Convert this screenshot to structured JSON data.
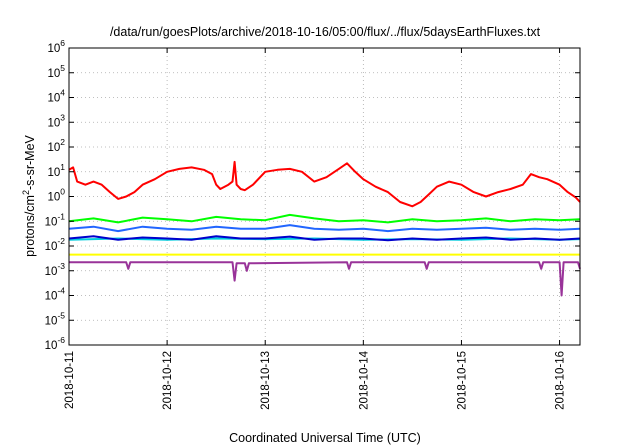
{
  "chart_data": {
    "type": "line",
    "title": "/data/run/goesPlots/archive/2018-10-16/05:00/flux/../flux/5daysEarthFluxes.txt",
    "xlabel": "Coordinated Universal Time (UTC)",
    "ylabel": {
      "pre": "protons/cm",
      "sup": "2",
      "post": "-s-sr-MeV"
    },
    "yscale": "log",
    "ylim": [
      1e-06,
      1000000.0
    ],
    "yticks": [
      {
        "base": "10",
        "exp": "-6",
        "value": 1e-06
      },
      {
        "base": "10",
        "exp": "-5",
        "value": 1e-05
      },
      {
        "base": "10",
        "exp": "-4",
        "value": 0.0001
      },
      {
        "base": "10",
        "exp": "-3",
        "value": 0.001
      },
      {
        "base": "10",
        "exp": "-2",
        "value": 0.01
      },
      {
        "base": "10",
        "exp": "-1",
        "value": 0.1
      },
      {
        "base": "10",
        "exp": "0",
        "value": 1
      },
      {
        "base": "10",
        "exp": "1",
        "value": 10.0
      },
      {
        "base": "10",
        "exp": "2",
        "value": 100.0
      },
      {
        "base": "10",
        "exp": "3",
        "value": 1000.0
      },
      {
        "base": "10",
        "exp": "4",
        "value": 10000.0
      },
      {
        "base": "10",
        "exp": "5",
        "value": 100000.0
      },
      {
        "base": "10",
        "exp": "6",
        "value": 1000000.0
      }
    ],
    "xlim": [
      "2018-10-11 00:00",
      "2018-10-16 05:00"
    ],
    "xticks": [
      "2018-10-11",
      "2018-10-12",
      "2018-10-13",
      "2018-10-14",
      "2018-10-15",
      "2018-10-16"
    ],
    "grid": true,
    "series": [
      {
        "color": "#ff0000",
        "points": [
          [
            "2018-10-11 00:00",
            12
          ],
          [
            "2018-10-11 01:00",
            15
          ],
          [
            "2018-10-11 02:00",
            4
          ],
          [
            "2018-10-11 04:00",
            3
          ],
          [
            "2018-10-11 06:00",
            4
          ],
          [
            "2018-10-11 08:00",
            3
          ],
          [
            "2018-10-11 10:00",
            1.5
          ],
          [
            "2018-10-11 12:00",
            0.8
          ],
          [
            "2018-10-11 14:00",
            1
          ],
          [
            "2018-10-11 16:00",
            1.5
          ],
          [
            "2018-10-11 18:00",
            3
          ],
          [
            "2018-10-11 21:00",
            5
          ],
          [
            "2018-10-12 00:00",
            10
          ],
          [
            "2018-10-12 03:00",
            13
          ],
          [
            "2018-10-12 06:00",
            15
          ],
          [
            "2018-10-12 09:00",
            12
          ],
          [
            "2018-10-12 11:00",
            8
          ],
          [
            "2018-10-12 12:00",
            3
          ],
          [
            "2018-10-12 13:00",
            2
          ],
          [
            "2018-10-12 15:00",
            3
          ],
          [
            "2018-10-12 16:00",
            4
          ],
          [
            "2018-10-12 16:30",
            25
          ],
          [
            "2018-10-12 17:00",
            3
          ],
          [
            "2018-10-12 18:00",
            2
          ],
          [
            "2018-10-12 19:00",
            1.8
          ],
          [
            "2018-10-12 21:00",
            3
          ],
          [
            "2018-10-13 00:00",
            10
          ],
          [
            "2018-10-13 03:00",
            12
          ],
          [
            "2018-10-13 06:00",
            13
          ],
          [
            "2018-10-13 09:00",
            10
          ],
          [
            "2018-10-13 12:00",
            4
          ],
          [
            "2018-10-13 15:00",
            6
          ],
          [
            "2018-10-13 18:00",
            13
          ],
          [
            "2018-10-13 20:00",
            22
          ],
          [
            "2018-10-13 22:00",
            10
          ],
          [
            "2018-10-14 00:00",
            5
          ],
          [
            "2018-10-14 03:00",
            2.5
          ],
          [
            "2018-10-14 06:00",
            1.5
          ],
          [
            "2018-10-14 09:00",
            0.6
          ],
          [
            "2018-10-14 12:00",
            0.4
          ],
          [
            "2018-10-14 14:00",
            0.6
          ],
          [
            "2018-10-14 16:00",
            1.2
          ],
          [
            "2018-10-14 18:00",
            2.5
          ],
          [
            "2018-10-14 21:00",
            4
          ],
          [
            "2018-10-15 00:00",
            3
          ],
          [
            "2018-10-15 03:00",
            1.5
          ],
          [
            "2018-10-15 06:00",
            1
          ],
          [
            "2018-10-15 09:00",
            1.5
          ],
          [
            "2018-10-15 12:00",
            2
          ],
          [
            "2018-10-15 15:00",
            3
          ],
          [
            "2018-10-15 17:00",
            8
          ],
          [
            "2018-10-15 19:00",
            6
          ],
          [
            "2018-10-15 21:00",
            5
          ],
          [
            "2018-10-16 00:00",
            3
          ],
          [
            "2018-10-16 02:00",
            1.5
          ],
          [
            "2018-10-16 04:00",
            0.9
          ],
          [
            "2018-10-16 05:00",
            0.6
          ]
        ]
      },
      {
        "color": "#00ff00",
        "points": [
          [
            "2018-10-11 00:00",
            0.1
          ],
          [
            "2018-10-11 06:00",
            0.13
          ],
          [
            "2018-10-11 12:00",
            0.09
          ],
          [
            "2018-10-11 18:00",
            0.14
          ],
          [
            "2018-10-12 00:00",
            0.12
          ],
          [
            "2018-10-12 06:00",
            0.1
          ],
          [
            "2018-10-12 12:00",
            0.15
          ],
          [
            "2018-10-12 18:00",
            0.12
          ],
          [
            "2018-10-13 00:00",
            0.11
          ],
          [
            "2018-10-13 06:00",
            0.18
          ],
          [
            "2018-10-13 12:00",
            0.13
          ],
          [
            "2018-10-13 18:00",
            0.1
          ],
          [
            "2018-10-14 00:00",
            0.11
          ],
          [
            "2018-10-14 06:00",
            0.09
          ],
          [
            "2018-10-14 12:00",
            0.12
          ],
          [
            "2018-10-14 18:00",
            0.1
          ],
          [
            "2018-10-15 00:00",
            0.11
          ],
          [
            "2018-10-15 06:00",
            0.13
          ],
          [
            "2018-10-15 12:00",
            0.1
          ],
          [
            "2018-10-15 18:00",
            0.12
          ],
          [
            "2018-10-16 00:00",
            0.11
          ],
          [
            "2018-10-16 05:00",
            0.12
          ]
        ]
      },
      {
        "color": "#2266ff",
        "points": [
          [
            "2018-10-11 00:00",
            0.05
          ],
          [
            "2018-10-11 06:00",
            0.06
          ],
          [
            "2018-10-11 12:00",
            0.04
          ],
          [
            "2018-10-11 18:00",
            0.06
          ],
          [
            "2018-10-12 00:00",
            0.05
          ],
          [
            "2018-10-12 06:00",
            0.045
          ],
          [
            "2018-10-12 12:00",
            0.06
          ],
          [
            "2018-10-12 18:00",
            0.05
          ],
          [
            "2018-10-13 00:00",
            0.05
          ],
          [
            "2018-10-13 06:00",
            0.07
          ],
          [
            "2018-10-13 12:00",
            0.05
          ],
          [
            "2018-10-13 18:00",
            0.045
          ],
          [
            "2018-10-14 00:00",
            0.05
          ],
          [
            "2018-10-14 06:00",
            0.04
          ],
          [
            "2018-10-14 12:00",
            0.05
          ],
          [
            "2018-10-14 18:00",
            0.045
          ],
          [
            "2018-10-15 00:00",
            0.05
          ],
          [
            "2018-10-15 06:00",
            0.055
          ],
          [
            "2018-10-15 12:00",
            0.045
          ],
          [
            "2018-10-15 18:00",
            0.05
          ],
          [
            "2018-10-16 00:00",
            0.045
          ],
          [
            "2018-10-16 05:00",
            0.05
          ]
        ]
      },
      {
        "color": "#00ccdd",
        "points": [
          [
            "2018-10-11 00:00",
            0.018
          ],
          [
            "2018-10-11 12:00",
            0.02
          ],
          [
            "2018-10-12 00:00",
            0.018
          ],
          [
            "2018-10-12 12:00",
            0.02
          ],
          [
            "2018-10-13 00:00",
            0.019
          ],
          [
            "2018-10-13 12:00",
            0.02
          ],
          [
            "2018-10-14 00:00",
            0.018
          ],
          [
            "2018-10-14 12:00",
            0.019
          ],
          [
            "2018-10-15 00:00",
            0.018
          ],
          [
            "2018-10-15 12:00",
            0.02
          ],
          [
            "2018-10-16 00:00",
            0.018
          ],
          [
            "2018-10-16 05:00",
            0.019
          ]
        ]
      },
      {
        "color": "#0000cc",
        "points": [
          [
            "2018-10-11 00:00",
            0.02
          ],
          [
            "2018-10-11 06:00",
            0.025
          ],
          [
            "2018-10-11 12:00",
            0.018
          ],
          [
            "2018-10-11 18:00",
            0.022
          ],
          [
            "2018-10-12 00:00",
            0.02
          ],
          [
            "2018-10-12 06:00",
            0.018
          ],
          [
            "2018-10-12 12:00",
            0.025
          ],
          [
            "2018-10-12 18:00",
            0.02
          ],
          [
            "2018-10-13 00:00",
            0.02
          ],
          [
            "2018-10-13 06:00",
            0.024
          ],
          [
            "2018-10-13 12:00",
            0.018
          ],
          [
            "2018-10-13 18:00",
            0.02
          ],
          [
            "2018-10-14 00:00",
            0.02
          ],
          [
            "2018-10-14 06:00",
            0.017
          ],
          [
            "2018-10-14 12:00",
            0.02
          ],
          [
            "2018-10-14 18:00",
            0.018
          ],
          [
            "2018-10-15 00:00",
            0.02
          ],
          [
            "2018-10-15 06:00",
            0.022
          ],
          [
            "2018-10-15 12:00",
            0.018
          ],
          [
            "2018-10-15 18:00",
            0.02
          ],
          [
            "2018-10-16 00:00",
            0.018
          ],
          [
            "2018-10-16 05:00",
            0.02
          ]
        ]
      },
      {
        "color": "#ffff00",
        "points": [
          [
            "2018-10-11 00:00",
            0.0045
          ],
          [
            "2018-10-12 00:00",
            0.0045
          ],
          [
            "2018-10-13 00:00",
            0.0045
          ],
          [
            "2018-10-14 00:00",
            0.0045
          ],
          [
            "2018-10-15 00:00",
            0.0045
          ],
          [
            "2018-10-16 00:00",
            0.0045
          ],
          [
            "2018-10-16 05:00",
            0.0045
          ]
        ]
      },
      {
        "color": "#993399",
        "points": [
          [
            "2018-10-11 00:00",
            0.0022
          ],
          [
            "2018-10-11 14:00",
            0.0022
          ],
          [
            "2018-10-11 14:30",
            0.0012
          ],
          [
            "2018-10-11 15:00",
            0.0022
          ],
          [
            "2018-10-12 16:00",
            0.0022
          ],
          [
            "2018-10-12 16:30",
            0.0004
          ],
          [
            "2018-10-12 17:00",
            0.002
          ],
          [
            "2018-10-12 19:00",
            0.002
          ],
          [
            "2018-10-12 19:30",
            0.001
          ],
          [
            "2018-10-12 20:00",
            0.002
          ],
          [
            "2018-10-13 20:00",
            0.0022
          ],
          [
            "2018-10-13 20:30",
            0.0012
          ],
          [
            "2018-10-13 21:00",
            0.0022
          ],
          [
            "2018-10-14 15:00",
            0.0022
          ],
          [
            "2018-10-14 15:30",
            0.0012
          ],
          [
            "2018-10-14 16:00",
            0.0022
          ],
          [
            "2018-10-15 19:00",
            0.0022
          ],
          [
            "2018-10-15 19:30",
            0.0012
          ],
          [
            "2018-10-15 20:00",
            0.0022
          ],
          [
            "2018-10-16 00:00",
            0.0022
          ],
          [
            "2018-10-16 00:30",
            0.0001
          ],
          [
            "2018-10-16 01:00",
            0.0022
          ],
          [
            "2018-10-16 04:30",
            0.0022
          ],
          [
            "2018-10-16 05:00",
            0.0012
          ]
        ]
      }
    ]
  }
}
